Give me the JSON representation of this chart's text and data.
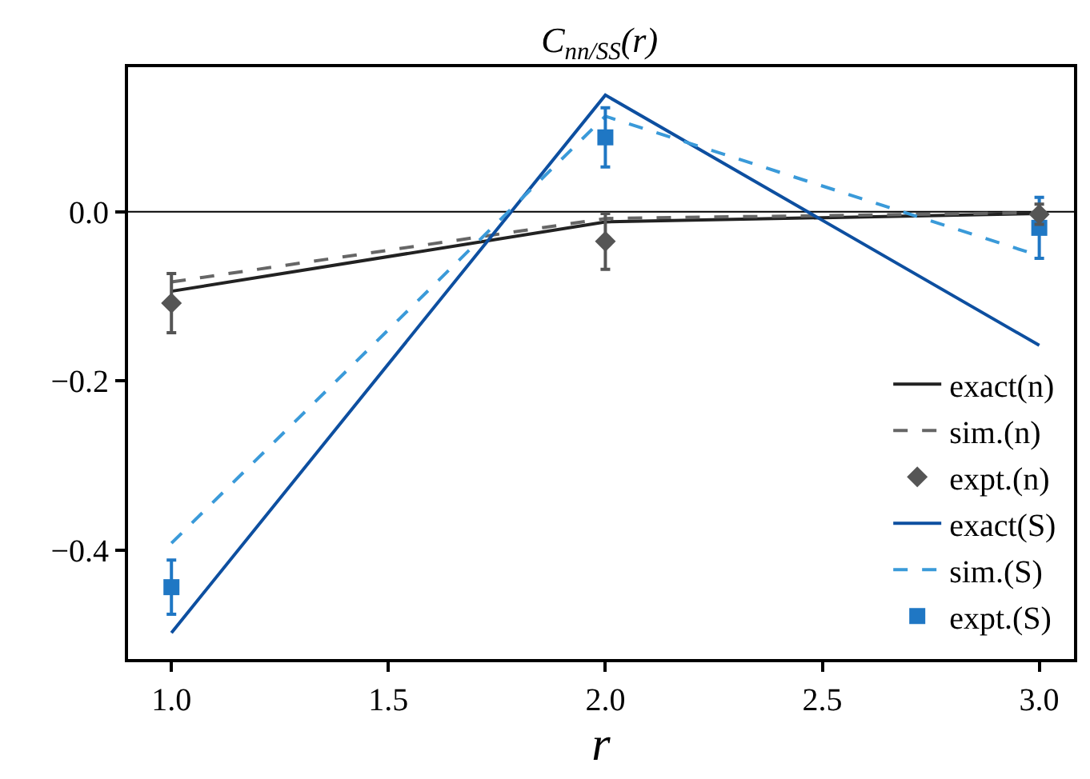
{
  "chart_data": {
    "type": "line",
    "title": "C$_{nn/SS}$(r)",
    "xlabel": "r",
    "x": [
      1.0,
      2.0,
      3.0
    ],
    "xlim": [
      0.9,
      3.08
    ],
    "xticks": [
      {
        "value": 1.0,
        "label": "1.0"
      },
      1.5,
      {
        "value": 2.0,
        "label": "2.0"
      },
      2.5,
      {
        "value": 3.0,
        "label": "3.0"
      }
    ],
    "ylim": [
      -0.529,
      0.171
    ],
    "yticks": [
      {
        "value": -0.4,
        "label": "−0.4"
      },
      {
        "value": -0.2,
        "label": "−0.2"
      },
      {
        "value": 0.0,
        "label": "0.0"
      }
    ],
    "grid": false,
    "legend": "bottom right",
    "ref_lines": [
      {
        "axis": "y",
        "value": 0.0,
        "color": "#000000",
        "line_style": "solid"
      }
    ],
    "series": [
      {
        "name": "exact(n)",
        "type": "line",
        "color": "#222222",
        "line_style": "solid",
        "marker": "none",
        "values": [
          -0.094,
          -0.012,
          -0.002
        ]
      },
      {
        "name": "sim.(n)",
        "type": "line",
        "color": "#666666",
        "line_style": "dashed",
        "marker": "none",
        "values": [
          -0.083,
          -0.008,
          -0.001
        ]
      },
      {
        "name": "expt.(n)",
        "type": "scatter",
        "color": "#555555",
        "marker": "diamond",
        "values": [
          -0.108,
          -0.035,
          -0.003
        ],
        "errors": [
          0.035,
          0.033,
          0.012
        ]
      },
      {
        "name": "exact(S)",
        "type": "line",
        "color": "#0d4fa0",
        "line_style": "solid",
        "marker": "none",
        "values": [
          -0.498,
          0.138,
          -0.158
        ]
      },
      {
        "name": "sim.(S)",
        "type": "line",
        "color": "#3a9ad9",
        "line_style": "dashed",
        "marker": "none",
        "values": [
          -0.392,
          0.113,
          -0.052
        ]
      },
      {
        "name": "expt.(S)",
        "type": "scatter",
        "color": "#1f77c4",
        "marker": "square",
        "values": [
          -0.444,
          0.088,
          -0.019
        ],
        "errors": [
          0.032,
          0.035,
          0.036
        ]
      }
    ]
  }
}
